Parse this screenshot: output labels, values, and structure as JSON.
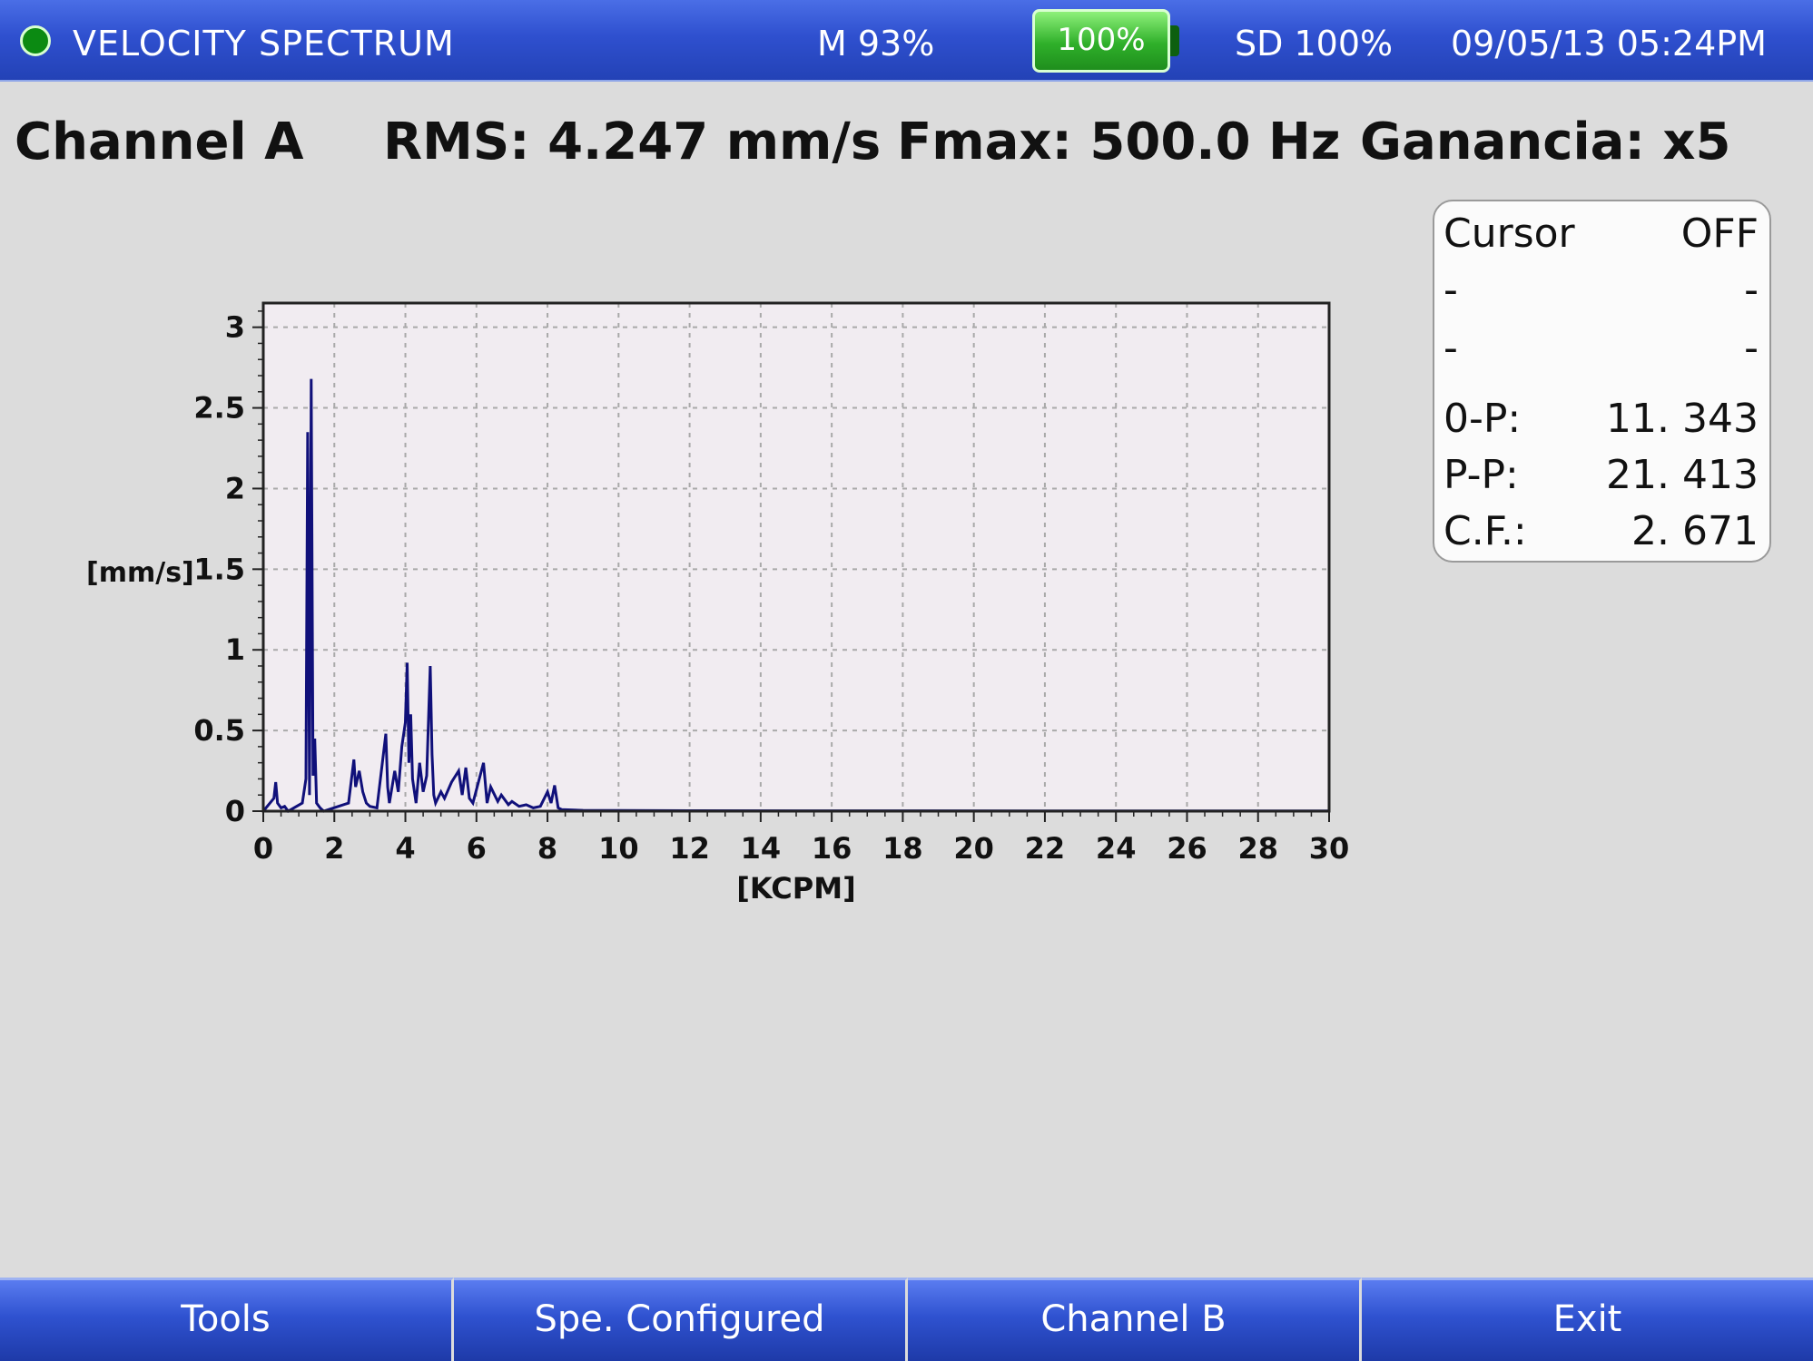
{
  "header": {
    "title": "VELOCITY SPECTRUM",
    "memory": "M 93%",
    "battery": "100%",
    "sd": "SD 100%",
    "datetime": "09/05/13 05:24PM"
  },
  "info": {
    "channel": "Channel A",
    "rms": "RMS: 4.247 mm/s",
    "fmax": "Fmax: 500.0 Hz",
    "gain": "Ganancia: x5"
  },
  "cursor_panel": {
    "title": "Cursor",
    "state": "OFF",
    "rows": [
      {
        "label": "-",
        "value": "-"
      },
      {
        "label": "-",
        "value": "-"
      },
      {
        "label": "0-P:",
        "value": "11. 343"
      },
      {
        "label": "P-P:",
        "value": "21. 413"
      },
      {
        "label": "C.F.:",
        "value": "2. 671"
      }
    ]
  },
  "chart_data": {
    "type": "line",
    "xlabel": "[KCPM]",
    "ylabel": "[mm/s]",
    "xlim": [
      0,
      30
    ],
    "ylim": [
      0,
      3.15
    ],
    "xticks": [
      "0",
      "2",
      "4",
      "6",
      "8",
      "10",
      "12",
      "14",
      "16",
      "18",
      "20",
      "22",
      "24",
      "26",
      "28",
      "30"
    ],
    "yticks": [
      "0",
      "0.5",
      "1",
      "1.5",
      "2",
      "2.5",
      "3"
    ],
    "grid": true,
    "line_color": "#10107a",
    "series": [
      {
        "x": [
          0,
          0.3,
          0.35,
          0.4,
          0.5,
          0.6,
          0.7,
          1.1,
          1.2,
          1.25,
          1.3,
          1.35,
          1.4,
          1.45,
          1.5,
          1.6,
          1.7,
          2.4,
          2.55,
          2.6,
          2.7,
          2.8,
          2.9,
          3.0,
          3.2,
          3.45,
          3.5,
          3.55,
          3.7,
          3.8,
          3.9,
          4.0,
          4.05,
          4.1,
          4.15,
          4.2,
          4.3,
          4.4,
          4.5,
          4.6,
          4.7,
          4.75,
          4.8,
          4.85,
          5.0,
          5.1,
          5.3,
          5.5,
          5.6,
          5.7,
          5.8,
          5.9,
          6.2,
          6.3,
          6.4,
          6.6,
          6.7,
          6.9,
          7.0,
          7.2,
          7.4,
          7.6,
          7.8,
          8.0,
          8.1,
          8.2,
          8.3,
          8.4,
          9.0,
          12.0,
          15.0,
          30.0
        ],
        "y": [
          0,
          0.08,
          0.18,
          0.05,
          0.02,
          0.03,
          0,
          0.05,
          0.2,
          2.35,
          0.1,
          2.68,
          0.22,
          0.45,
          0.05,
          0.02,
          0,
          0.05,
          0.32,
          0.15,
          0.25,
          0.12,
          0.05,
          0.03,
          0.02,
          0.48,
          0.15,
          0.05,
          0.25,
          0.12,
          0.4,
          0.55,
          0.92,
          0.3,
          0.6,
          0.2,
          0.05,
          0.3,
          0.12,
          0.22,
          0.9,
          0.35,
          0.1,
          0.05,
          0.12,
          0.08,
          0.18,
          0.25,
          0.1,
          0.27,
          0.08,
          0.05,
          0.3,
          0.05,
          0.15,
          0.06,
          0.1,
          0.04,
          0.06,
          0.03,
          0.04,
          0.02,
          0.03,
          0.12,
          0.05,
          0.16,
          0.02,
          0.01,
          0.005,
          0.003,
          0.002,
          0.001
        ]
      }
    ]
  },
  "softkeys": [
    "Tools",
    "Spe. Configured",
    "Channel B",
    "Exit"
  ]
}
